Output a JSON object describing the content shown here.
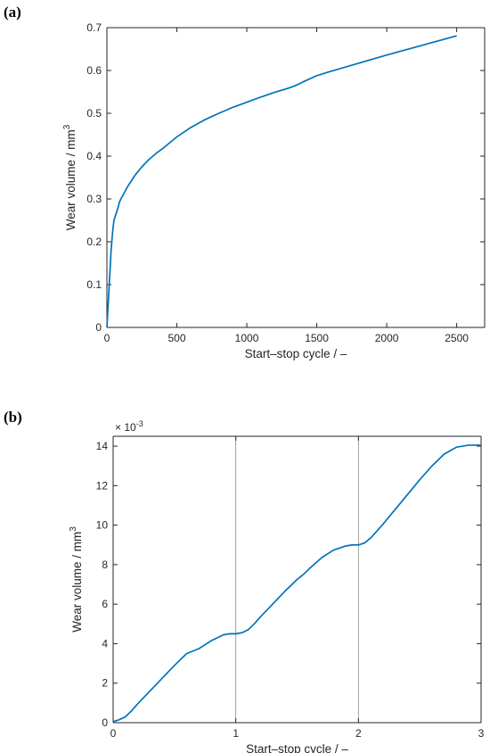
{
  "panels": {
    "a": {
      "label": "(a)"
    },
    "b": {
      "label": "(b)"
    }
  },
  "chart_data": [
    {
      "type": "line",
      "xlabel": "Start–stop cycle / –",
      "ylabel": "Wear volume / mm",
      "ylabel_sup": "3",
      "xlim": [
        0,
        2700
      ],
      "ylim": [
        0,
        0.7
      ],
      "xticks": [
        0,
        500,
        1000,
        1500,
        2000,
        2500
      ],
      "xtick_labels": [
        "0",
        "500",
        "1000",
        "1500",
        "2000",
        "2500"
      ],
      "yticks": [
        0,
        0.1,
        0.2,
        0.3,
        0.4,
        0.5,
        0.6,
        0.7
      ],
      "ytick_labels": [
        "0",
        "0.1",
        "0.2",
        "0.3",
        "0.4",
        "0.5",
        "0.6",
        "0.7"
      ],
      "grid": false,
      "color": "#0072BD",
      "series": [
        {
          "x": [
            0,
            10,
            20,
            30,
            40,
            50,
            60,
            80,
            90,
            100,
            150,
            200,
            250,
            300,
            350,
            400,
            500,
            600,
            700,
            800,
            900,
            1000,
            1100,
            1200,
            1300,
            1350,
            1400,
            1500,
            1600,
            1800,
            2000,
            2200,
            2400,
            2500
          ],
          "y": [
            0,
            0.06,
            0.12,
            0.18,
            0.22,
            0.25,
            0.26,
            0.28,
            0.293,
            0.3,
            0.33,
            0.355,
            0.375,
            0.392,
            0.406,
            0.418,
            0.445,
            0.467,
            0.485,
            0.5,
            0.514,
            0.526,
            0.538,
            0.549,
            0.559,
            0.565,
            0.573,
            0.588,
            0.598,
            0.617,
            0.636,
            0.654,
            0.672,
            0.681
          ]
        }
      ]
    },
    {
      "type": "line",
      "xlabel": "Start–stop cycle / –",
      "ylabel": "Wear volume / mm",
      "ylabel_sup": "3",
      "scale_note": "× 10",
      "scale_exp": "-3",
      "xlim": [
        0,
        3
      ],
      "ylim": [
        0,
        14.5
      ],
      "xticks": [
        0,
        1,
        2,
        3
      ],
      "xtick_labels": [
        "0",
        "1",
        "2",
        "3"
      ],
      "yticks": [
        0,
        2,
        4,
        6,
        8,
        10,
        12,
        14
      ],
      "ytick_labels": [
        "0",
        "2",
        "4",
        "6",
        "8",
        "10",
        "12",
        "14"
      ],
      "vlines": [
        1,
        2
      ],
      "grid": false,
      "color": "#0072BD",
      "series": [
        {
          "x": [
            0,
            0.05,
            0.1,
            0.15,
            0.2,
            0.3,
            0.4,
            0.5,
            0.55,
            0.6,
            0.7,
            0.75,
            0.8,
            0.9,
            0.95,
            1.0,
            1.05,
            1.1,
            1.15,
            1.2,
            1.3,
            1.4,
            1.5,
            1.55,
            1.6,
            1.7,
            1.75,
            1.8,
            1.9,
            1.95,
            2.0,
            2.05,
            2.1,
            2.2,
            2.3,
            2.4,
            2.5,
            2.6,
            2.7,
            2.8,
            2.9,
            2.95,
            3.0
          ],
          "y": [
            0.05,
            0.15,
            0.3,
            0.6,
            0.95,
            1.6,
            2.25,
            2.9,
            3.2,
            3.5,
            3.75,
            3.95,
            4.15,
            4.45,
            4.5,
            4.5,
            4.55,
            4.7,
            5.0,
            5.35,
            6.0,
            6.65,
            7.25,
            7.5,
            7.8,
            8.35,
            8.55,
            8.75,
            8.95,
            9.0,
            9.0,
            9.1,
            9.35,
            10.05,
            10.8,
            11.55,
            12.3,
            13.0,
            13.6,
            13.95,
            14.05,
            14.05,
            14.05
          ]
        }
      ]
    }
  ]
}
